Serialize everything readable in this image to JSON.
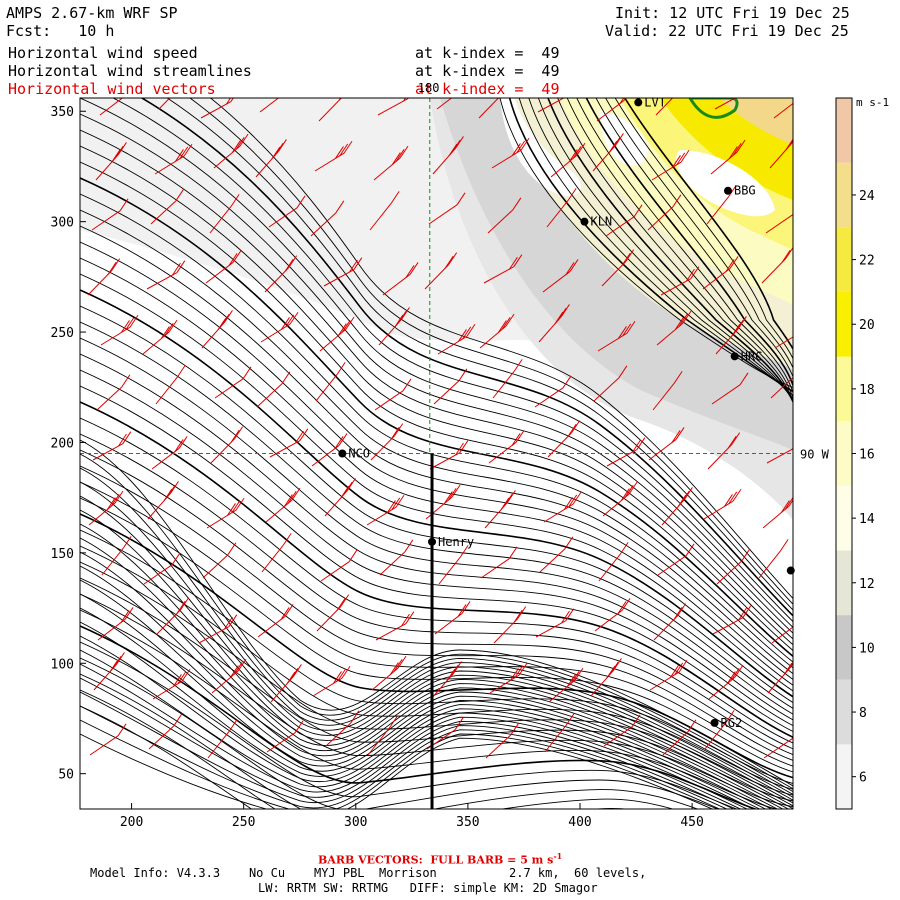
{
  "header": {
    "model_title": "AMPS 2.67-km WRF SP",
    "forecast": "Fcst:   10 h",
    "init": "Init: 12 UTC Fri 19 Dec 25",
    "valid": "Valid: 22 UTC Fri 19 Dec 25",
    "field_lines": [
      {
        "name": "Horizontal wind speed",
        "level": "at k-index =  49"
      },
      {
        "name": "Horizontal wind streamlines",
        "level": "at k-index =  49"
      },
      {
        "name": "Horizontal wind vectors",
        "level": "at k-index =  49"
      }
    ],
    "vector_color": "#e00000"
  },
  "chart_data": {
    "type": "contour-map",
    "title": "Horizontal wind speed, streamlines and vectors at k-index 49",
    "xlim": [
      177,
      495
    ],
    "ylim": [
      34,
      356
    ],
    "x_ticks": [
      200,
      250,
      300,
      350,
      400,
      450
    ],
    "y_ticks": [
      50,
      100,
      150,
      200,
      250,
      300,
      350
    ],
    "grid_lines": {
      "lon_label": "180",
      "lon_x": 333,
      "lat_label": "90 W",
      "lat_y": 195
    },
    "stations": [
      {
        "name": "LVT",
        "x": 426,
        "y": 354
      },
      {
        "name": "BBG",
        "x": 466,
        "y": 314
      },
      {
        "name": "KLN",
        "x": 402,
        "y": 300
      },
      {
        "name": "HRC",
        "x": 469,
        "y": 239
      },
      {
        "name": "NCO",
        "x": 294,
        "y": 195
      },
      {
        "name": "Henry",
        "x": 334,
        "y": 155
      },
      {
        "name": "RG2",
        "x": 460,
        "y": 73
      },
      {
        "name": "",
        "x": 494,
        "y": 142
      }
    ],
    "cross_section": {
      "x": 334,
      "y_from": 34,
      "y_to": 195
    },
    "colorbar": {
      "units": "m s-1",
      "min": 5,
      "max": 27,
      "tick_labels": [
        "6",
        "8",
        "10",
        "12",
        "14",
        "16",
        "18",
        "20",
        "22",
        "24"
      ],
      "tick_values": [
        6,
        8,
        10,
        12,
        14,
        16,
        18,
        20,
        22,
        24
      ],
      "bins": [
        {
          "from": 5,
          "to": 7,
          "color": "#f4f4f4"
        },
        {
          "from": 7,
          "to": 9,
          "color": "#dcdcdc"
        },
        {
          "from": 9,
          "to": 11,
          "color": "#c8c8c8"
        },
        {
          "from": 11,
          "to": 13,
          "color": "#e6e6d6"
        },
        {
          "from": 13,
          "to": 15,
          "color": "#fefee8"
        },
        {
          "from": 15,
          "to": 17,
          "color": "#fdfcc6"
        },
        {
          "from": 17,
          "to": 19,
          "color": "#fcfa96"
        },
        {
          "from": 19,
          "to": 21,
          "color": "#f8f000"
        },
        {
          "from": 21,
          "to": 23,
          "color": "#f6ea40"
        },
        {
          "from": 23,
          "to": 25,
          "color": "#f3de8a"
        },
        {
          "from": 25,
          "to": 27,
          "color": "#f0c8a8"
        }
      ]
    }
  },
  "footer": {
    "barb_note": "BARB VECTORS:  FULL BARB = 5 m s",
    "barb_exp": "-1",
    "model_info": "Model Info: V4.3.3    No Cu    MYJ PBL  Morrison          2.7 km,  60 levels,",
    "physics": "LW: RRTM SW: RRTMG   DIFF: simple KM: 2D Smagor"
  }
}
